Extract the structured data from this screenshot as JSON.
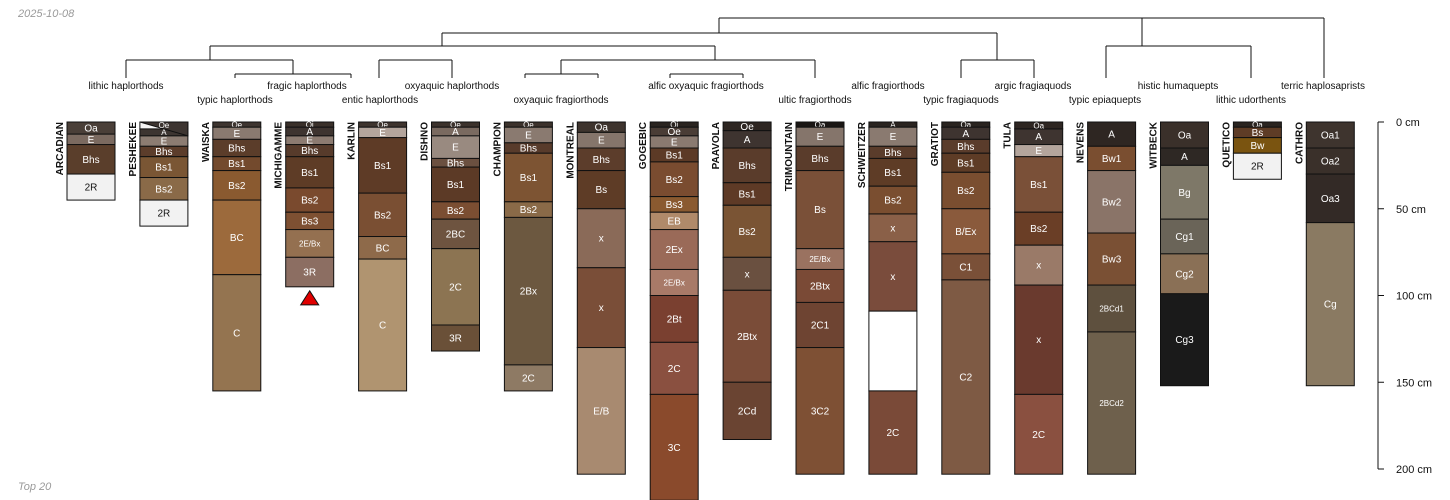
{
  "date_label": "2025-10-08",
  "footer_label": "Top 20",
  "depth_axis": {
    "unit": "cm",
    "ticks": [
      0,
      50,
      100,
      150,
      200
    ],
    "max": 200
  },
  "taxa": [
    "lithic haplorthods",
    "typic haplorthods",
    "fragic haplorthods",
    "entic haplorthods",
    "oxyaquic haplorthods",
    "oxyaquic fragiorthods",
    "alfic oxyaquic fragiorthods",
    "ultic fragiorthods",
    "alfic fragiorthods",
    "typic fragiaquods",
    "argic fragiaquods",
    "typic epiaquepts",
    "histic humaquepts",
    "lithic udorthents",
    "terric haplosaprists"
  ],
  "profiles": [
    {
      "name": "ARCADIAN",
      "horizons": [
        {
          "name": "Oa",
          "top": 0,
          "bottom": 7,
          "color": "#4a3f38"
        },
        {
          "name": "E",
          "top": 7,
          "bottom": 13,
          "color": "#7b6a60"
        },
        {
          "name": "Bhs",
          "top": 13,
          "bottom": 30,
          "color": "#5a3e2b"
        },
        {
          "name": "2R",
          "top": 30,
          "bottom": 45,
          "color": "#f2f2f2"
        }
      ]
    },
    {
      "name": "PESHEKEE",
      "horizons": [
        {
          "name": "Oe",
          "top": 0,
          "bottom": 4,
          "color": "#f4f4f4"
        },
        {
          "name": "A",
          "top": 4,
          "bottom": 8,
          "color": "#3d3531"
        },
        {
          "name": "E",
          "top": 8,
          "bottom": 14,
          "color": "#8c7c72"
        },
        {
          "name": "Bhs",
          "top": 14,
          "bottom": 20,
          "color": "#5c3d2b"
        },
        {
          "name": "Bs1",
          "top": 20,
          "bottom": 32,
          "color": "#7a5634"
        },
        {
          "name": "Bs2",
          "top": 32,
          "bottom": 45,
          "color": "#8a6a48"
        },
        {
          "name": "2R",
          "top": 45,
          "bottom": 60,
          "color": "#f2f2f2"
        }
      ]
    },
    {
      "name": "WAISKA",
      "horizons": [
        {
          "name": "Oe",
          "top": 0,
          "bottom": 3,
          "color": "#3e3530"
        },
        {
          "name": "E",
          "top": 3,
          "bottom": 10,
          "color": "#8a7a70"
        },
        {
          "name": "Bhs",
          "top": 10,
          "bottom": 20,
          "color": "#5b3d2a"
        },
        {
          "name": "Bs1",
          "top": 20,
          "bottom": 28,
          "color": "#734a2d"
        },
        {
          "name": "Bs2",
          "top": 28,
          "bottom": 45,
          "color": "#8a5a30"
        },
        {
          "name": "BC",
          "top": 45,
          "bottom": 88,
          "color": "#9c6a3c"
        },
        {
          "name": "C",
          "top": 88,
          "bottom": 155,
          "color": "#947450"
        }
      ]
    },
    {
      "name": "MICHIGAMME",
      "horizons": [
        {
          "name": "Oi",
          "top": 0,
          "bottom": 3,
          "color": "#3a302a"
        },
        {
          "name": "A",
          "top": 3,
          "bottom": 8,
          "color": "#3e3430"
        },
        {
          "name": "E",
          "top": 8,
          "bottom": 13,
          "color": "#8c7b71"
        },
        {
          "name": "Bhs",
          "top": 13,
          "bottom": 20,
          "color": "#573b2b"
        },
        {
          "name": "Bs1",
          "top": 20,
          "bottom": 38,
          "color": "#5e3c26"
        },
        {
          "name": "Bs2",
          "top": 38,
          "bottom": 52,
          "color": "#7a4a2e"
        },
        {
          "name": "Bs3",
          "top": 52,
          "bottom": 62,
          "color": "#7e5032"
        },
        {
          "name": "2E/Bx",
          "top": 62,
          "bottom": 78,
          "color": "#947050"
        },
        {
          "name": "3R",
          "top": 78,
          "bottom": 95,
          "color": "#8c6e62"
        }
      ]
    },
    {
      "name": "KARLIN",
      "horizons": [
        {
          "name": "Oe",
          "top": 0,
          "bottom": 3,
          "color": "#3e342e"
        },
        {
          "name": "E",
          "top": 3,
          "bottom": 9,
          "color": "#b4a59c"
        },
        {
          "name": "Bs1",
          "top": 9,
          "bottom": 41,
          "color": "#5e3b26"
        },
        {
          "name": "Bs2",
          "top": 41,
          "bottom": 66,
          "color": "#7a4f33"
        },
        {
          "name": "BC",
          "top": 66,
          "bottom": 79,
          "color": "#8e6a4a"
        },
        {
          "name": "C",
          "top": 79,
          "bottom": 155,
          "color": "#b09470"
        }
      ]
    },
    {
      "name": "DISHNO",
      "horizons": [
        {
          "name": "Oe",
          "top": 0,
          "bottom": 3,
          "color": "#3c322c"
        },
        {
          "name": "A",
          "top": 3,
          "bottom": 8,
          "color": "#7a6a60"
        },
        {
          "name": "E",
          "top": 8,
          "bottom": 21,
          "color": "#998a80"
        },
        {
          "name": "Bhs",
          "top": 21,
          "bottom": 26,
          "color": "#6b5040"
        },
        {
          "name": "Bs1",
          "top": 26,
          "bottom": 46,
          "color": "#5c3a26"
        },
        {
          "name": "Bs2",
          "top": 46,
          "bottom": 56,
          "color": "#7b4e32"
        },
        {
          "name": "2BC",
          "top": 56,
          "bottom": 73,
          "color": "#6e5440"
        },
        {
          "name": "2C",
          "top": 73,
          "bottom": 117,
          "color": "#8c7452"
        },
        {
          "name": "3R",
          "top": 117,
          "bottom": 132,
          "color": "#6a5038"
        }
      ]
    },
    {
      "name": "CHAMPION",
      "horizons": [
        {
          "name": "Oe",
          "top": 0,
          "bottom": 3,
          "color": "#3c322c"
        },
        {
          "name": "E",
          "top": 3,
          "bottom": 12,
          "color": "#8a7a70"
        },
        {
          "name": "Bhs",
          "top": 12,
          "bottom": 18,
          "color": "#583b2b"
        },
        {
          "name": "Bs1",
          "top": 18,
          "bottom": 46,
          "color": "#7d5433"
        },
        {
          "name": "Bs2",
          "top": 46,
          "bottom": 55,
          "color": "#8a6a48"
        },
        {
          "name": "2Bx",
          "top": 55,
          "bottom": 140,
          "color": "#6c5840"
        },
        {
          "name": "2C",
          "top": 140,
          "bottom": 155,
          "color": "#8e7a64"
        }
      ]
    },
    {
      "name": "MONTREAL",
      "horizons": [
        {
          "name": "Oa",
          "top": 0,
          "bottom": 6,
          "color": "#3e342e"
        },
        {
          "name": "E",
          "top": 6,
          "bottom": 15,
          "color": "#85756b"
        },
        {
          "name": "Bhs",
          "top": 15,
          "bottom": 28,
          "color": "#5c3d2b"
        },
        {
          "name": "Bs",
          "top": 28,
          "bottom": 50,
          "color": "#5e3c26"
        },
        {
          "name": "x",
          "top": 50,
          "bottom": 84,
          "color": "#8a6a58"
        },
        {
          "name": "x",
          "top": 84,
          "bottom": 130,
          "color": "#7a4e38"
        },
        {
          "name": "E/B",
          "top": 130,
          "bottom": 203,
          "color": "#a88a70"
        }
      ]
    },
    {
      "name": "GOGEBIC",
      "horizons": [
        {
          "name": "Oi",
          "top": 0,
          "bottom": 3,
          "color": "#2a2420"
        },
        {
          "name": "Oe",
          "top": 3,
          "bottom": 8,
          "color": "#4a3d36"
        },
        {
          "name": "E",
          "top": 8,
          "bottom": 15,
          "color": "#8a7a70"
        },
        {
          "name": "Bs1",
          "top": 15,
          "bottom": 23,
          "color": "#5c3a26"
        },
        {
          "name": "Bs2",
          "top": 23,
          "bottom": 43,
          "color": "#7a4c30"
        },
        {
          "name": "Bs3",
          "top": 43,
          "bottom": 52,
          "color": "#8a5a30"
        },
        {
          "name": "EB",
          "top": 52,
          "bottom": 62,
          "color": "#b08a6a"
        },
        {
          "name": "2Ex",
          "top": 62,
          "bottom": 85,
          "color": "#9a6a58"
        },
        {
          "name": "2E/Bx",
          "top": 85,
          "bottom": 100,
          "color": "#a87a68"
        },
        {
          "name": "2Bt",
          "top": 100,
          "bottom": 127,
          "color": "#7a4030"
        },
        {
          "name": "2C",
          "top": 127,
          "bottom": 157,
          "color": "#8a5040"
        },
        {
          "name": "3C",
          "top": 157,
          "bottom": 218,
          "color": "#8a4a2c"
        }
      ]
    },
    {
      "name": "PAAVOLA",
      "horizons": [
        {
          "name": "Oe",
          "top": 0,
          "bottom": 5,
          "color": "#2e2622"
        },
        {
          "name": "A",
          "top": 5,
          "bottom": 15,
          "color": "#3e3430"
        },
        {
          "name": "Bhs",
          "top": 15,
          "bottom": 35,
          "color": "#5a3c2b"
        },
        {
          "name": "Bs1",
          "top": 35,
          "bottom": 48,
          "color": "#5e3a26"
        },
        {
          "name": "Bs2",
          "top": 48,
          "bottom": 78,
          "color": "#7a5434"
        },
        {
          "name": "x",
          "top": 78,
          "bottom": 97,
          "color": "#6a5040"
        },
        {
          "name": "2Btx",
          "top": 97,
          "bottom": 150,
          "color": "#7a4c38"
        },
        {
          "name": "2Cd",
          "top": 150,
          "bottom": 183,
          "color": "#6a4432"
        }
      ]
    },
    {
      "name": "TRIMOUNTAIN",
      "horizons": [
        {
          "name": "Oa",
          "top": 0,
          "bottom": 3,
          "color": "#1a1614"
        },
        {
          "name": "E",
          "top": 3,
          "bottom": 14,
          "color": "#85756b"
        },
        {
          "name": "Bhs",
          "top": 14,
          "bottom": 28,
          "color": "#5a3c2b"
        },
        {
          "name": "Bs",
          "top": 28,
          "bottom": 73,
          "color": "#7a5038"
        },
        {
          "name": "2E/Bx",
          "top": 73,
          "bottom": 85,
          "color": "#9a7260"
        },
        {
          "name": "2Btx",
          "top": 85,
          "bottom": 104,
          "color": "#7a4a36"
        },
        {
          "name": "2C1",
          "top": 104,
          "bottom": 130,
          "color": "#6e4432"
        },
        {
          "name": "3C2",
          "top": 130,
          "bottom": 203,
          "color": "#7e5034"
        }
      ]
    },
    {
      "name": "SCHWEITZER",
      "horizons": [
        {
          "name": "A",
          "top": 0,
          "bottom": 3,
          "color": "#2a2420"
        },
        {
          "name": "E",
          "top": 3,
          "bottom": 14,
          "color": "#8a7a70"
        },
        {
          "name": "Bhs",
          "top": 14,
          "bottom": 21,
          "color": "#5a3c2b"
        },
        {
          "name": "Bs1",
          "top": 21,
          "bottom": 37,
          "color": "#5e3c26"
        },
        {
          "name": "Bs2",
          "top": 37,
          "bottom": 53,
          "color": "#7a4e30"
        },
        {
          "name": "x",
          "top": 53,
          "bottom": 69,
          "color": "#8a6048"
        },
        {
          "name": "x",
          "top": 69,
          "bottom": 109,
          "color": "#7a4c3c"
        },
        {
          "name": "",
          "top": 109,
          "bottom": 155,
          "color": "#ffffff"
        },
        {
          "name": "2C",
          "top": 155,
          "bottom": 203,
          "color": "#7a4a38"
        }
      ]
    },
    {
      "name": "GRATIOT",
      "horizons": [
        {
          "name": "Oa",
          "top": 0,
          "bottom": 3,
          "color": "#2a2420"
        },
        {
          "name": "A",
          "top": 3,
          "bottom": 10,
          "color": "#3e3430"
        },
        {
          "name": "Bhs",
          "top": 10,
          "bottom": 18,
          "color": "#5a3c2b"
        },
        {
          "name": "Bs1",
          "top": 18,
          "bottom": 29,
          "color": "#5e3c26"
        },
        {
          "name": "Bs2",
          "top": 29,
          "bottom": 50,
          "color": "#7a4e30"
        },
        {
          "name": "B/Ex",
          "top": 50,
          "bottom": 76,
          "color": "#8a5a3c"
        },
        {
          "name": "C1",
          "top": 76,
          "bottom": 91,
          "color": "#7a5038"
        },
        {
          "name": "C2",
          "top": 91,
          "bottom": 203,
          "color": "#7e5a44"
        }
      ]
    },
    {
      "name": "TULA",
      "horizons": [
        {
          "name": "Oa",
          "top": 0,
          "bottom": 4,
          "color": "#2e2622"
        },
        {
          "name": "A",
          "top": 4,
          "bottom": 13,
          "color": "#3e3430"
        },
        {
          "name": "E",
          "top": 13,
          "bottom": 20,
          "color": "#b4a59c"
        },
        {
          "name": "Bs1",
          "top": 20,
          "bottom": 52,
          "color": "#7a5038"
        },
        {
          "name": "Bs2",
          "top": 52,
          "bottom": 71,
          "color": "#6a3e26"
        },
        {
          "name": "x",
          "top": 71,
          "bottom": 94,
          "color": "#9a7a68"
        },
        {
          "name": "x",
          "top": 94,
          "bottom": 157,
          "color": "#6a3a2e"
        },
        {
          "name": "2C",
          "top": 157,
          "bottom": 203,
          "color": "#8a5040"
        }
      ]
    },
    {
      "name": "NEVENS",
      "horizons": [
        {
          "name": "A",
          "top": 0,
          "bottom": 14,
          "color": "#2e2622"
        },
        {
          "name": "Bw1",
          "top": 14,
          "bottom": 28,
          "color": "#7a4e30"
        },
        {
          "name": "Bw2",
          "top": 28,
          "bottom": 64,
          "color": "#8a7468"
        },
        {
          "name": "Bw3",
          "top": 64,
          "bottom": 94,
          "color": "#7a5034"
        },
        {
          "name": "2BCd1",
          "top": 94,
          "bottom": 121,
          "color": "#5e503e"
        },
        {
          "name": "2BCd2",
          "top": 121,
          "bottom": 203,
          "color": "#6e604c"
        }
      ]
    },
    {
      "name": "WITBECK",
      "horizons": [
        {
          "name": "Oa",
          "top": 0,
          "bottom": 15,
          "color": "#3a302a"
        },
        {
          "name": "A",
          "top": 15,
          "bottom": 25,
          "color": "#2e2824"
        },
        {
          "name": "Bg",
          "top": 25,
          "bottom": 56,
          "color": "#7e7868"
        },
        {
          "name": "Cg1",
          "top": 56,
          "bottom": 76,
          "color": "#6a6458"
        },
        {
          "name": "Cg2",
          "top": 76,
          "bottom": 99,
          "color": "#8a7056"
        },
        {
          "name": "Cg3",
          "top": 99,
          "bottom": 152,
          "color": "#1a1a1a"
        }
      ]
    },
    {
      "name": "QUETICO",
      "horizons": [
        {
          "name": "Oa",
          "top": 0,
          "bottom": 3,
          "color": "#2a2420"
        },
        {
          "name": "Bs",
          "top": 3,
          "bottom": 9,
          "color": "#5e3c26"
        },
        {
          "name": "Bw",
          "top": 9,
          "bottom": 18,
          "color": "#7a5410"
        },
        {
          "name": "2R",
          "top": 18,
          "bottom": 33,
          "color": "#f2f2f2"
        }
      ]
    },
    {
      "name": "CATHRO",
      "horizons": [
        {
          "name": "Oa1",
          "top": 0,
          "bottom": 15,
          "color": "#3e342e"
        },
        {
          "name": "Oa2",
          "top": 15,
          "bottom": 30,
          "color": "#3a302a"
        },
        {
          "name": "Oa3",
          "top": 30,
          "bottom": 58,
          "color": "#332a26"
        },
        {
          "name": "Cg",
          "top": 58,
          "bottom": 152,
          "color": "#8a7a62"
        }
      ]
    }
  ]
}
